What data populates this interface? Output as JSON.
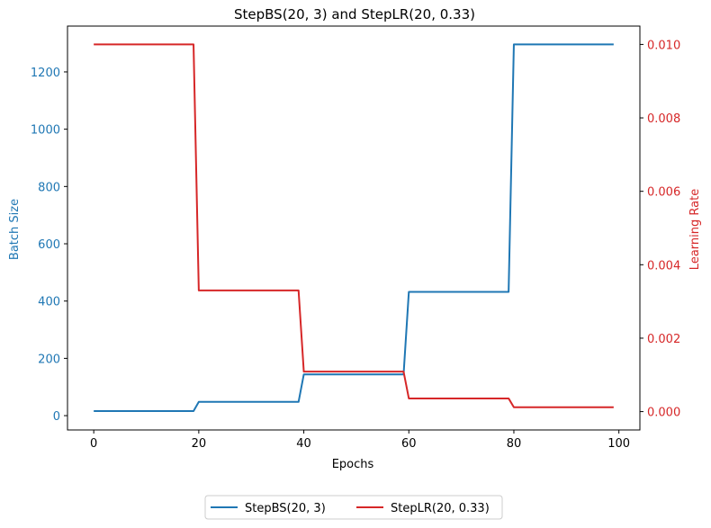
{
  "chart_data": {
    "type": "line",
    "title": "StepBS(20, 3) and StepLR(20, 0.33)",
    "xlabel": "Epochs",
    "ylabel_left": "Batch Size",
    "ylabel_right": "Learning Rate",
    "xlim": [
      -5,
      104
    ],
    "ylim_left": [
      -50,
      1360
    ],
    "ylim_right": [
      -0.0005,
      0.0105
    ],
    "x_ticks": [
      0,
      20,
      40,
      60,
      80,
      100
    ],
    "x_tick_labels": [
      "0",
      "20",
      "40",
      "60",
      "80",
      "100"
    ],
    "y_left_ticks": [
      0,
      200,
      400,
      600,
      800,
      1000,
      1200
    ],
    "y_left_tick_labels": [
      "0",
      "200",
      "400",
      "600",
      "800",
      "1000",
      "1200"
    ],
    "y_right_ticks": [
      0,
      0.002,
      0.004,
      0.006,
      0.008,
      0.01
    ],
    "y_right_tick_labels": [
      "0.000",
      "0.002",
      "0.004",
      "0.006",
      "0.008",
      "0.010"
    ],
    "grid": false,
    "legend_placement": "bottom-center",
    "series": [
      {
        "name": "StepBS(20, 3)",
        "axis": "left",
        "color": "#1f77b4",
        "step_size": 20,
        "factor": 3,
        "points": [
          [
            0,
            16
          ],
          [
            19,
            16
          ],
          [
            20,
            48
          ],
          [
            39,
            48
          ],
          [
            40,
            144
          ],
          [
            59,
            144
          ],
          [
            60,
            432
          ],
          [
            79,
            432
          ],
          [
            80,
            1296
          ],
          [
            99,
            1296
          ]
        ]
      },
      {
        "name": "StepLR(20, 0.33)",
        "axis": "right",
        "color": "#d62728",
        "step_size": 20,
        "factor": 0.33,
        "points": [
          [
            0,
            0.01
          ],
          [
            19,
            0.01
          ],
          [
            20,
            0.0033
          ],
          [
            39,
            0.0033
          ],
          [
            40,
            0.001089
          ],
          [
            59,
            0.001089
          ],
          [
            60,
            0.000359
          ],
          [
            79,
            0.000359
          ],
          [
            80,
            0.000119
          ],
          [
            99,
            0.000119
          ]
        ]
      }
    ]
  }
}
